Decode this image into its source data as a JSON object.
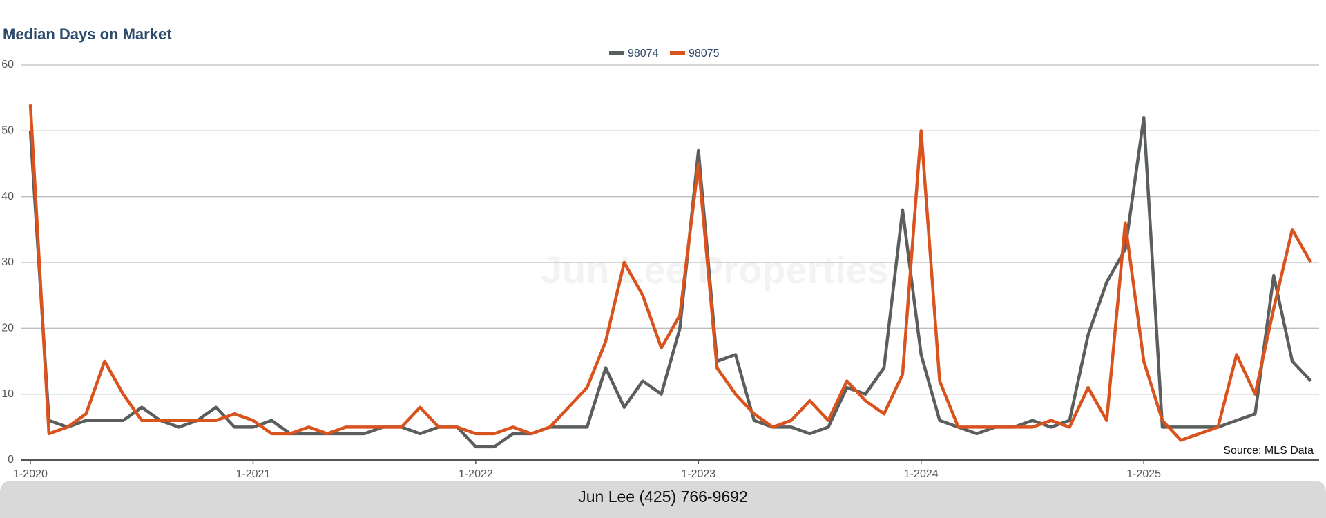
{
  "chart_data": {
    "type": "line",
    "title": "Median Days on Market",
    "categories": [
      "1-2020",
      null,
      null,
      null,
      null,
      null,
      null,
      null,
      null,
      null,
      null,
      null,
      "1-2021",
      null,
      null,
      null,
      null,
      null,
      null,
      null,
      null,
      null,
      null,
      null,
      "1-2022",
      null,
      null,
      null,
      null,
      null,
      null,
      null,
      null,
      null,
      null,
      null,
      "1-2023",
      null,
      null,
      null,
      null,
      null,
      null,
      null,
      null,
      null,
      null,
      null,
      "1-2024",
      null,
      null,
      null,
      null,
      null,
      null,
      null,
      null,
      null,
      null,
      null,
      "1-2025",
      null,
      null,
      null,
      null,
      null,
      null,
      null,
      null,
      null
    ],
    "series": [
      {
        "name": "98074",
        "color": "#5a5f5d",
        "values": [
          50,
          6,
          5,
          6,
          6,
          6,
          8,
          6,
          5,
          6,
          8,
          5,
          5,
          6,
          4,
          4,
          4,
          4,
          4,
          5,
          5,
          4,
          5,
          5,
          2,
          2,
          4,
          4,
          5,
          5,
          5,
          14,
          8,
          12,
          10,
          20,
          47,
          15,
          16,
          6,
          5,
          5,
          4,
          5,
          11,
          10,
          14,
          38,
          16,
          6,
          5,
          4,
          5,
          5,
          6,
          5,
          6,
          19,
          27,
          32,
          52,
          5,
          5,
          5,
          5,
          6,
          7,
          28,
          15,
          12
        ]
      },
      {
        "name": "98075",
        "color": "#d9531e",
        "values": [
          54,
          4,
          5,
          7,
          15,
          10,
          6,
          6,
          6,
          6,
          6,
          7,
          6,
          4,
          4,
          5,
          4,
          5,
          5,
          5,
          5,
          8,
          5,
          5,
          4,
          4,
          5,
          4,
          5,
          8,
          11,
          18,
          30,
          25,
          17,
          22,
          45,
          14,
          10,
          7,
          5,
          6,
          9,
          6,
          12,
          9,
          7,
          13,
          50,
          12,
          5,
          5,
          5,
          5,
          5,
          6,
          5,
          11,
          6,
          36,
          15,
          6,
          3,
          4,
          5,
          16,
          10,
          23,
          35,
          30
        ]
      }
    ],
    "ylim": [
      0,
      60
    ],
    "yticks": [
      0,
      10,
      20,
      30,
      40,
      50,
      60
    ],
    "grid": true,
    "legend": "top",
    "source": "Source: MLS Data",
    "watermark": "Jun Lee Properties"
  },
  "footer": "Jun Lee (425) 766-9692"
}
